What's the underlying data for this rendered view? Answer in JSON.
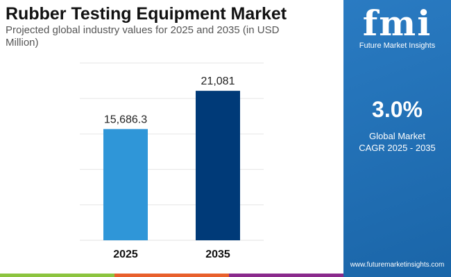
{
  "title": "Rubber Testing Equipment Market",
  "subtitle": "Projected global industry values for 2025 and 2035 (in USD Million)",
  "panel": {
    "logo_text": "fmi",
    "logo_name": "Future Market Insights",
    "cagr": "3.0%",
    "cagr_label_1": "Global Market",
    "cagr_label_2": "CAGR 2025 - 2035",
    "website": "www.futuremarketinsights.com"
  },
  "colors": {
    "bar_2025": "#2f96d8",
    "bar_2035": "#003a78",
    "panel": "#1f6fb5",
    "strip": [
      "#8cc43f",
      "#e8602c",
      "#8a2a8c"
    ]
  },
  "chart_data": {
    "type": "bar",
    "categories": [
      "2025",
      "2035"
    ],
    "values": [
      15686.3,
      21081
    ],
    "data_labels": [
      "15,686.3",
      "21,081"
    ],
    "ylim": [
      0,
      25000
    ],
    "grid": true,
    "title": "Rubber Testing Equipment Market",
    "xlabel": "",
    "ylabel": ""
  }
}
